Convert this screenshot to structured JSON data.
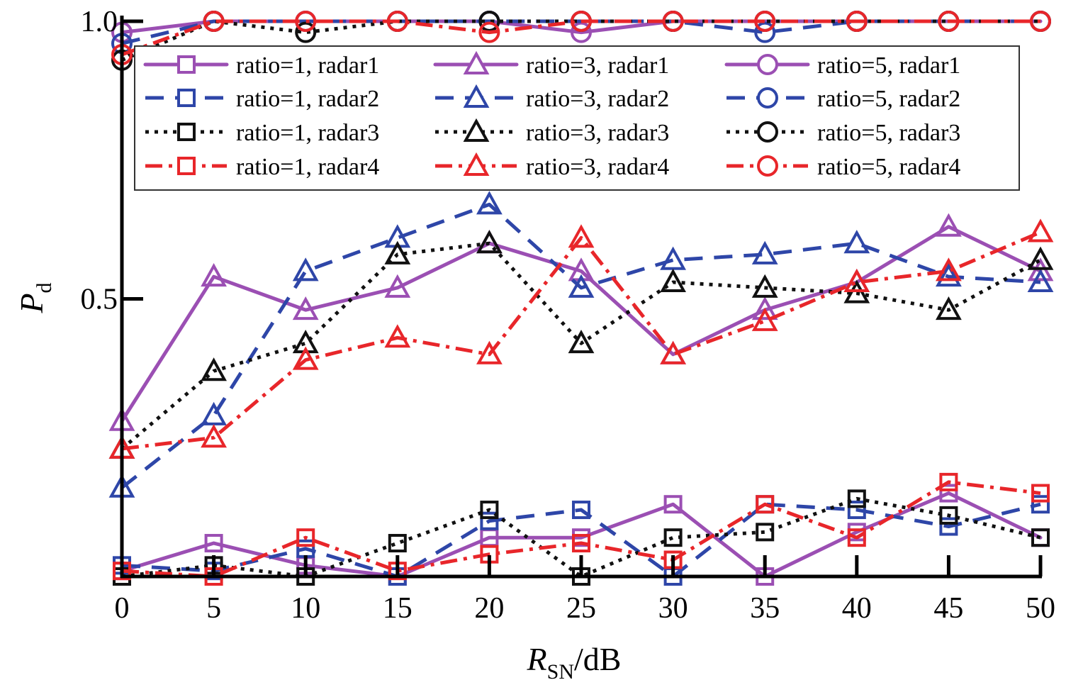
{
  "chart_data": {
    "type": "line",
    "title": "",
    "xlabel": "R",
    "xlabel_sub": "SN",
    "xlabel_unit": "/dB",
    "ylabel": "P",
    "ylabel_sub": "d",
    "x": [
      0,
      5,
      10,
      15,
      20,
      25,
      30,
      35,
      40,
      45,
      50
    ],
    "x_tick_labels": [
      "0",
      "5",
      "10",
      "15",
      "20",
      "25",
      "30",
      "35",
      "40",
      "45",
      "50"
    ],
    "y_tick_labels": [
      "0.5",
      "1.0"
    ],
    "y_tick_values": [
      0.5,
      1.0
    ],
    "xlim": [
      0,
      50
    ],
    "ylim": [
      0,
      1.0
    ],
    "grid": false,
    "legend_position": "top",
    "colors": {
      "radar1": "#9b4fb3",
      "radar2": "#2e46a8",
      "radar3": "#111111",
      "radar4": "#e8262a"
    },
    "series": [
      {
        "name": "ratio=1, radar1",
        "radar": "radar1",
        "marker": "square",
        "values": [
          0.01,
          0.06,
          0.02,
          0.0,
          0.07,
          0.07,
          0.13,
          0.0,
          0.08,
          0.15,
          0.07
        ]
      },
      {
        "name": "ratio=3, radar1",
        "radar": "radar1",
        "marker": "triangle",
        "values": [
          0.28,
          0.54,
          0.48,
          0.52,
          0.6,
          0.55,
          0.4,
          0.48,
          0.53,
          0.63,
          0.55
        ]
      },
      {
        "name": "ratio=5, radar1",
        "radar": "radar1",
        "marker": "circle",
        "values": [
          0.98,
          1.0,
          1.0,
          1.0,
          1.0,
          0.98,
          1.0,
          1.0,
          1.0,
          1.0,
          1.0
        ]
      },
      {
        "name": "ratio=1, radar2",
        "radar": "radar2",
        "marker": "square",
        "values": [
          0.02,
          0.01,
          0.05,
          0.0,
          0.1,
          0.12,
          0.0,
          0.13,
          0.12,
          0.09,
          0.13
        ]
      },
      {
        "name": "ratio=3, radar2",
        "radar": "radar2",
        "marker": "triangle",
        "values": [
          0.16,
          0.29,
          0.55,
          0.61,
          0.67,
          0.52,
          0.57,
          0.58,
          0.6,
          0.54,
          0.53
        ]
      },
      {
        "name": "ratio=5, radar2",
        "radar": "radar2",
        "marker": "circle",
        "values": [
          0.96,
          1.0,
          1.0,
          1.0,
          1.0,
          1.0,
          1.0,
          0.98,
          1.0,
          1.0,
          1.0
        ]
      },
      {
        "name": "ratio=1, radar3",
        "radar": "radar3",
        "marker": "square",
        "values": [
          0.0,
          0.02,
          0.0,
          0.06,
          0.12,
          0.0,
          0.07,
          0.08,
          0.14,
          0.11,
          0.07
        ]
      },
      {
        "name": "ratio=3, radar3",
        "radar": "radar3",
        "marker": "triangle",
        "values": [
          0.23,
          0.37,
          0.42,
          0.58,
          0.6,
          0.42,
          0.53,
          0.52,
          0.51,
          0.48,
          0.57
        ]
      },
      {
        "name": "ratio=5, radar3",
        "radar": "radar3",
        "marker": "circle",
        "values": [
          0.93,
          1.0,
          0.98,
          1.0,
          1.0,
          1.0,
          1.0,
          1.0,
          1.0,
          1.0,
          1.0
        ]
      },
      {
        "name": "ratio=1, radar4",
        "radar": "radar4",
        "marker": "square",
        "values": [
          0.01,
          0.0,
          0.07,
          0.01,
          0.04,
          0.06,
          0.03,
          0.13,
          0.07,
          0.17,
          0.15
        ]
      },
      {
        "name": "ratio=3, radar4",
        "radar": "radar4",
        "marker": "triangle",
        "values": [
          0.23,
          0.25,
          0.39,
          0.43,
          0.4,
          0.61,
          0.4,
          0.46,
          0.53,
          0.55,
          0.62
        ]
      },
      {
        "name": "ratio=5, radar4",
        "radar": "radar4",
        "marker": "circle",
        "values": [
          0.94,
          1.0,
          1.0,
          1.0,
          0.98,
          1.0,
          1.0,
          1.0,
          1.0,
          1.0,
          1.0
        ]
      }
    ]
  }
}
